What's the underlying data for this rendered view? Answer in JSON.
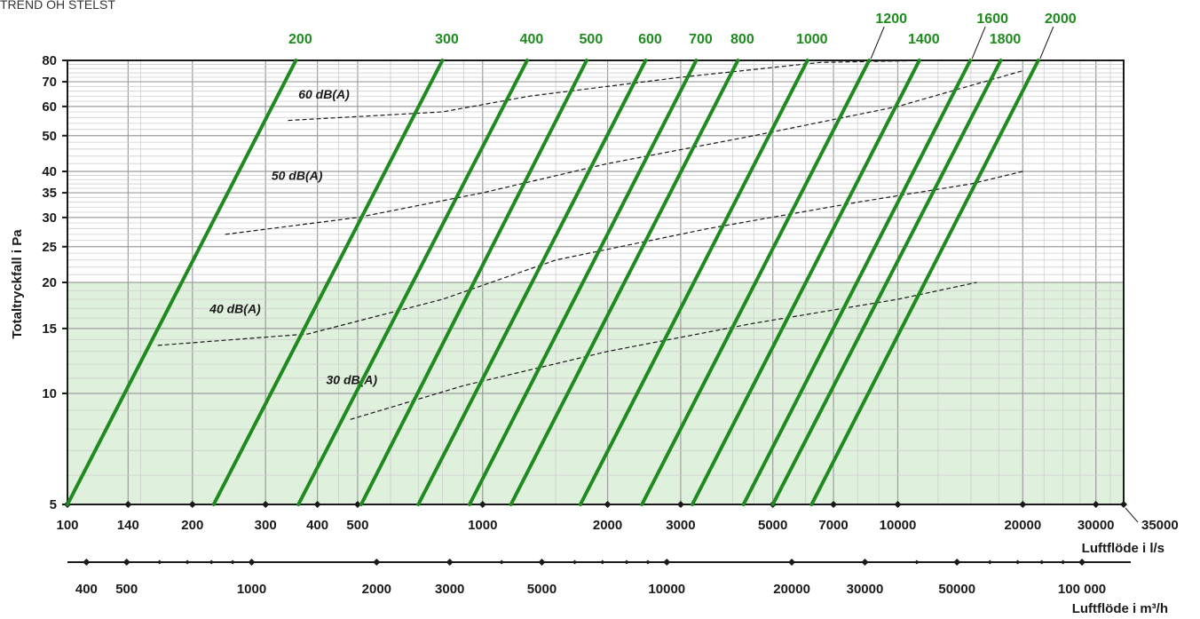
{
  "header": {
    "title": "TREND OH STELST"
  },
  "chart_data": {
    "type": "line",
    "y_axis_label": "Totaltryckfall i Pa",
    "x_axis_label": "Luftflöde i l/s",
    "x2_axis_label": "Luftflöde i m³/h",
    "x_scale": "log",
    "y_scale": "log",
    "xlim": [
      100,
      35000
    ],
    "ylim": [
      5,
      80
    ],
    "x_ticks": [
      100,
      140,
      200,
      300,
      400,
      500,
      1000,
      2000,
      3000,
      5000,
      7000,
      10000,
      20000,
      30000,
      35000
    ],
    "x_tick_labels": [
      "100",
      "140",
      "200",
      "300",
      "400",
      "500",
      "1000",
      "2000",
      "3000",
      "5000",
      "7000",
      "10000",
      "20000",
      "30000",
      "35000"
    ],
    "y_ticks": [
      5,
      10,
      15,
      20,
      25,
      30,
      35,
      40,
      50,
      60,
      70,
      80
    ],
    "y_tick_labels": [
      "5",
      "10",
      "15",
      "20",
      "25",
      "30",
      "35",
      "40",
      "50",
      "60",
      "70",
      "80"
    ],
    "x2_ticks": [
      400,
      500,
      1000,
      2000,
      3000,
      5000,
      10000,
      20000,
      30000,
      50000,
      100000
    ],
    "x2_tick_labels": [
      "400",
      "500",
      "1000",
      "2000",
      "3000",
      "5000",
      "10000",
      "20000",
      "30000",
      "50000",
      "100 000"
    ],
    "x2_marker_values": [
      400,
      500,
      600,
      700,
      800,
      900,
      1000,
      2000,
      3000,
      4000,
      5000,
      6000,
      7000,
      8000,
      9000,
      10000,
      20000,
      30000,
      40000,
      50000,
      60000,
      70000,
      80000,
      90000,
      100000
    ],
    "highlight_band": {
      "y_range": [
        5,
        20
      ],
      "color": "#dff0dc"
    },
    "grid": true,
    "series": [
      {
        "name": "200",
        "x": [
          100,
          355
        ],
        "y": [
          5,
          80
        ]
      },
      {
        "name": "300",
        "x": [
          225,
          800
        ],
        "y": [
          5,
          80
        ]
      },
      {
        "name": "400",
        "x": [
          360,
          1280
        ],
        "y": [
          5,
          80
        ]
      },
      {
        "name": "500",
        "x": [
          510,
          1780
        ],
        "y": [
          5,
          80
        ]
      },
      {
        "name": "600",
        "x": [
          700,
          2470
        ],
        "y": [
          5,
          80
        ]
      },
      {
        "name": "700",
        "x": [
          930,
          3270
        ],
        "y": [
          5,
          80
        ]
      },
      {
        "name": "800",
        "x": [
          1170,
          4120
        ],
        "y": [
          5,
          80
        ]
      },
      {
        "name": "1000",
        "x": [
          1720,
          6060
        ],
        "y": [
          5,
          80
        ]
      },
      {
        "name": "1200",
        "x": [
          2420,
          8530
        ],
        "y": [
          5,
          80
        ]
      },
      {
        "name": "1400",
        "x": [
          3200,
          11270
        ],
        "y": [
          5,
          80
        ]
      },
      {
        "name": "1600",
        "x": [
          4250,
          14950
        ],
        "y": [
          5,
          80
        ]
      },
      {
        "name": "1800",
        "x": [
          5000,
          17700
        ],
        "y": [
          5,
          80
        ]
      },
      {
        "name": "2000",
        "x": [
          6200,
          21800
        ],
        "y": [
          5,
          80
        ]
      }
    ],
    "sound_curves": [
      {
        "name": "60 dB(A)",
        "x": [
          340,
          800,
          1300,
          3000,
          6500,
          12000,
          20000
        ],
        "y": [
          55,
          58,
          64,
          72,
          79,
          80,
          80
        ]
      },
      {
        "name": "50 dB(A)",
        "x": [
          240,
          500,
          1000,
          2000,
          4500,
          10000,
          20000
        ],
        "y": [
          27,
          30,
          35,
          42,
          50,
          60,
          75
        ]
      },
      {
        "name": "40 dB(A)",
        "x": [
          165,
          380,
          800,
          1500,
          3500,
          8000,
          15000,
          20000
        ],
        "y": [
          13.5,
          14.5,
          18,
          23,
          28,
          33,
          37,
          40
        ]
      },
      {
        "name": "30 dB(A)",
        "x": [
          480,
          900,
          2000,
          4500,
          10000,
          15500
        ],
        "y": [
          8.5,
          10.5,
          13,
          15.5,
          18,
          20
        ]
      }
    ],
    "series_color": "#1f8a1f",
    "sound_curve_color": "#1a1a1a",
    "grid_color": "#9e9e9e"
  }
}
